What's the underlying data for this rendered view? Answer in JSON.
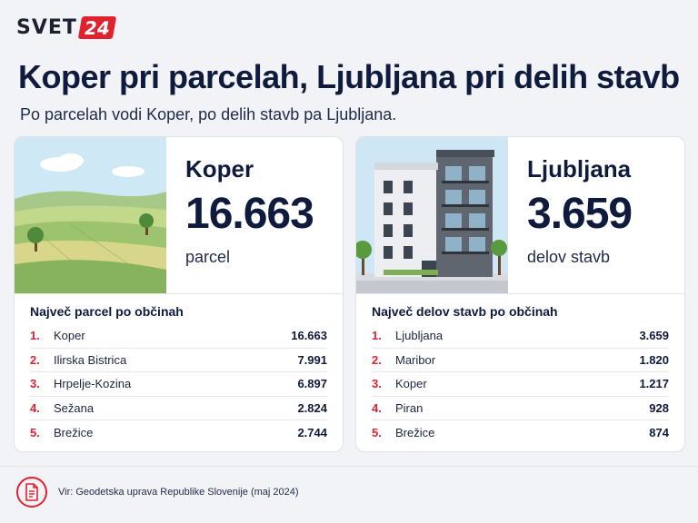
{
  "brand": {
    "word": "SVET",
    "number": "24"
  },
  "title": "Koper pri parcelah, Ljubljana pri delih stavb",
  "subtitle": "Po parcelah vodi Koper, po delih stavb pa Ljubljana.",
  "cards": [
    {
      "city": "Koper",
      "value": "16.663",
      "unit": "parcel",
      "image_icon": "farmland-illustration",
      "list_title": "Največ parcel po občinah",
      "rows": [
        {
          "rank": "1.",
          "name": "Koper",
          "value": "16.663"
        },
        {
          "rank": "2.",
          "name": "Ilirska Bistrica",
          "value": "7.991"
        },
        {
          "rank": "3.",
          "name": "Hrpelje-Kozina",
          "value": "6.897"
        },
        {
          "rank": "4.",
          "name": "Sežana",
          "value": "2.824"
        },
        {
          "rank": "5.",
          "name": "Brežice",
          "value": "2.744"
        }
      ]
    },
    {
      "city": "Ljubljana",
      "value": "3.659",
      "unit": "delov stavb",
      "image_icon": "apartment-building-illustration",
      "list_title": "Največ delov stavb po občinah",
      "rows": [
        {
          "rank": "1.",
          "name": "Ljubljana",
          "value": "3.659"
        },
        {
          "rank": "2.",
          "name": "Maribor",
          "value": "1.820"
        },
        {
          "rank": "3.",
          "name": "Koper",
          "value": "1.217"
        },
        {
          "rank": "4.",
          "name": "Piran",
          "value": "928"
        },
        {
          "rank": "5.",
          "name": "Brežice",
          "value": "874"
        }
      ]
    }
  ],
  "source": "Vir: Geodetska uprava Republike Slovenije (maj 2024)",
  "colors": {
    "accent": "#e0222e",
    "navy": "#0f1b3d",
    "background": "#f2f3f6"
  }
}
